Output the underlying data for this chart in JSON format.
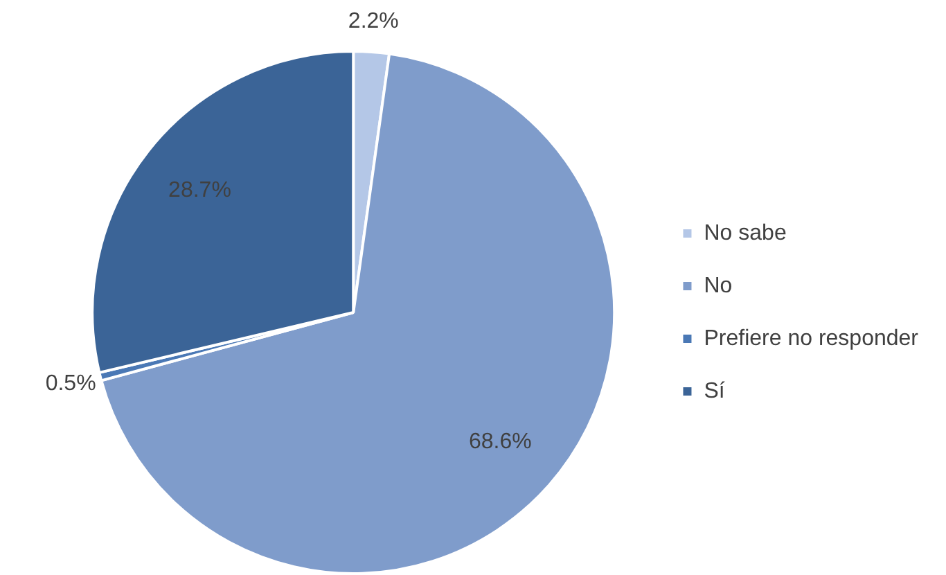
{
  "chart_data": {
    "type": "pie",
    "categories": [
      "No sabe",
      "No",
      "Prefiere no responder",
      "Sí"
    ],
    "values": [
      2.2,
      68.6,
      0.5,
      28.7
    ],
    "colors": [
      "#b4c7e7",
      "#7f9ccb",
      "#4a78b5",
      "#3b6497"
    ],
    "value_labels": [
      "2.2%",
      "68.6%",
      "0.5%",
      "28.7%"
    ],
    "legend": "right"
  }
}
